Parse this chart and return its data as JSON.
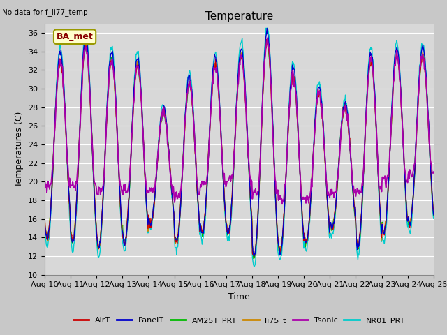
{
  "title": "Temperature",
  "ylabel": "Temperatures (C)",
  "xlabel": "Time",
  "no_data_text": "No data for f_li77_temp",
  "ba_met_label": "BA_met",
  "ylim": [
    10,
    37
  ],
  "yticks": [
    10,
    12,
    14,
    16,
    18,
    20,
    22,
    24,
    26,
    28,
    30,
    32,
    34,
    36
  ],
  "xtick_labels": [
    "Aug 10",
    "Aug 11",
    "Aug 12",
    "Aug 13",
    "Aug 14",
    "Aug 15",
    "Aug 16",
    "Aug 17",
    "Aug 18",
    "Aug 19",
    "Aug 20",
    "Aug 21",
    "Aug 22",
    "Aug 23",
    "Aug 24",
    "Aug 25"
  ],
  "n_days": 15,
  "points_per_day": 48,
  "series_order": [
    "NR01_PRT",
    "AM25T_PRT",
    "li75_t",
    "AirT",
    "PanelT",
    "Tsonic"
  ],
  "series": {
    "AirT": {
      "color": "#cc0000",
      "lw": 1.0
    },
    "PanelT": {
      "color": "#0000cc",
      "lw": 1.0
    },
    "AM25T_PRT": {
      "color": "#00bb00",
      "lw": 1.0
    },
    "li75_t": {
      "color": "#cc8800",
      "lw": 1.0
    },
    "Tsonic": {
      "color": "#aa00aa",
      "lw": 1.3
    },
    "NR01_PRT": {
      "color": "#00cccc",
      "lw": 1.0
    }
  },
  "axes_bg": "#d8d8d8",
  "grid_color": "#ffffff",
  "fig_bg": "#c8c8c8",
  "title_fontsize": 11,
  "label_fontsize": 9,
  "tick_fontsize": 8,
  "legend_fontsize": 8
}
